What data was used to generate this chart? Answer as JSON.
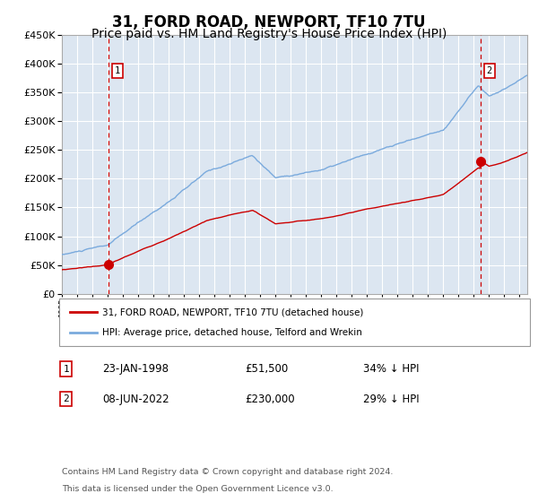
{
  "title": "31, FORD ROAD, NEWPORT, TF10 7TU",
  "subtitle": "Price paid vs. HM Land Registry's House Price Index (HPI)",
  "title_fontsize": 12,
  "subtitle_fontsize": 10,
  "bg_color": "#dce6f1",
  "plot_bg_color": "#dce6f1",
  "fig_bg_color": "#ffffff",
  "ylim": [
    0,
    450000
  ],
  "yticks": [
    0,
    50000,
    100000,
    150000,
    200000,
    250000,
    300000,
    350000,
    400000,
    450000
  ],
  "red_line_color": "#cc0000",
  "blue_line_color": "#7aaadd",
  "vline_color": "#cc0000",
  "marker_color": "#cc0000",
  "marker_size": 7,
  "sale1_year": 1998.06,
  "sale1_price": 51500,
  "sale1_label": "1",
  "sale1_date": "23-JAN-1998",
  "sale1_price_str": "£51,500",
  "sale1_pct": "34% ↓ HPI",
  "sale2_year": 2022.44,
  "sale2_price": 230000,
  "sale2_label": "2",
  "sale2_date": "08-JUN-2022",
  "sale2_price_str": "£230,000",
  "sale2_pct": "29% ↓ HPI",
  "legend_entry1": "31, FORD ROAD, NEWPORT, TF10 7TU (detached house)",
  "legend_entry2": "HPI: Average price, detached house, Telford and Wrekin",
  "footnote_line1": "Contains HM Land Registry data © Crown copyright and database right 2024.",
  "footnote_line2": "This data is licensed under the Open Government Licence v3.0.",
  "xmin": 1995.0,
  "xmax": 2025.5,
  "grid_color": "#ffffff",
  "border_color": "#aaaaaa"
}
